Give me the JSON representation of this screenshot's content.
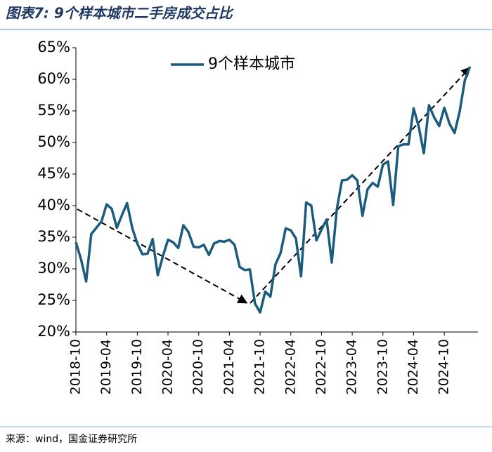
{
  "chart_data": {
    "type": "line",
    "title": "图表7: 9个样本城市二手房成交占比",
    "source": "来源：wind，国金证券研究所",
    "categories": [
      "2018-10",
      null,
      null,
      null,
      null,
      null,
      "2019-04",
      null,
      null,
      null,
      null,
      null,
      "2019-10",
      null,
      null,
      null,
      null,
      null,
      "2020-04",
      null,
      null,
      null,
      null,
      null,
      "2020-10",
      null,
      null,
      null,
      null,
      null,
      "2021-04",
      null,
      null,
      null,
      null,
      null,
      "2021-10",
      null,
      null,
      null,
      null,
      null,
      "2022-04",
      null,
      null,
      null,
      null,
      null,
      "2022-10",
      null,
      null,
      null,
      null,
      null,
      "2023-04",
      null,
      null,
      null,
      null,
      null,
      "2023-10",
      null,
      null,
      null,
      null,
      null,
      "2024-04",
      null,
      null,
      null,
      null,
      null,
      "2024-10",
      null,
      null,
      null,
      null,
      null
    ],
    "series": [
      {
        "name": "9个样本城市",
        "color": "#1a5b7e",
        "values": [
          34.2,
          31.5,
          28,
          35.5,
          36.5,
          37.5,
          40.2,
          39.5,
          36.5,
          38.5,
          40.4,
          36.5,
          34,
          32.3,
          32.4,
          34.7,
          29,
          32,
          34.6,
          34.2,
          33.3,
          36.9,
          35.8,
          33.5,
          33.4,
          33.8,
          32.2,
          34,
          34.4,
          34.3,
          34.6,
          33.8,
          30.3,
          29.8,
          29.9,
          24.5,
          23.1,
          26.4,
          25.6,
          30.7,
          32.5,
          36.4,
          36.1,
          34.8,
          28.8,
          40.5,
          40,
          34.5,
          36.2,
          37.8,
          31,
          39.5,
          44,
          44.1,
          44.8,
          44,
          38.4,
          42.6,
          43.6,
          43,
          46.5,
          47,
          40.1,
          49.4,
          49.7,
          49.7,
          55.4,
          52.5,
          48.3,
          55.9,
          54,
          52.6,
          55.5,
          53,
          51.5,
          54.9,
          59.8,
          62
        ]
      }
    ],
    "ylim": [
      20,
      65
    ],
    "yticks": [
      {
        "value": 20,
        "label": "20%"
      },
      {
        "value": 25,
        "label": "25%"
      },
      {
        "value": 30,
        "label": "30%"
      },
      {
        "value": 35,
        "label": "35%"
      },
      {
        "value": 40,
        "label": "40%"
      },
      {
        "value": 45,
        "label": "45%"
      },
      {
        "value": 50,
        "label": "50%"
      },
      {
        "value": 55,
        "label": "55%"
      },
      {
        "value": 60,
        "label": "60%"
      },
      {
        "value": 65,
        "label": "65%"
      }
    ],
    "legend": "top"
  }
}
